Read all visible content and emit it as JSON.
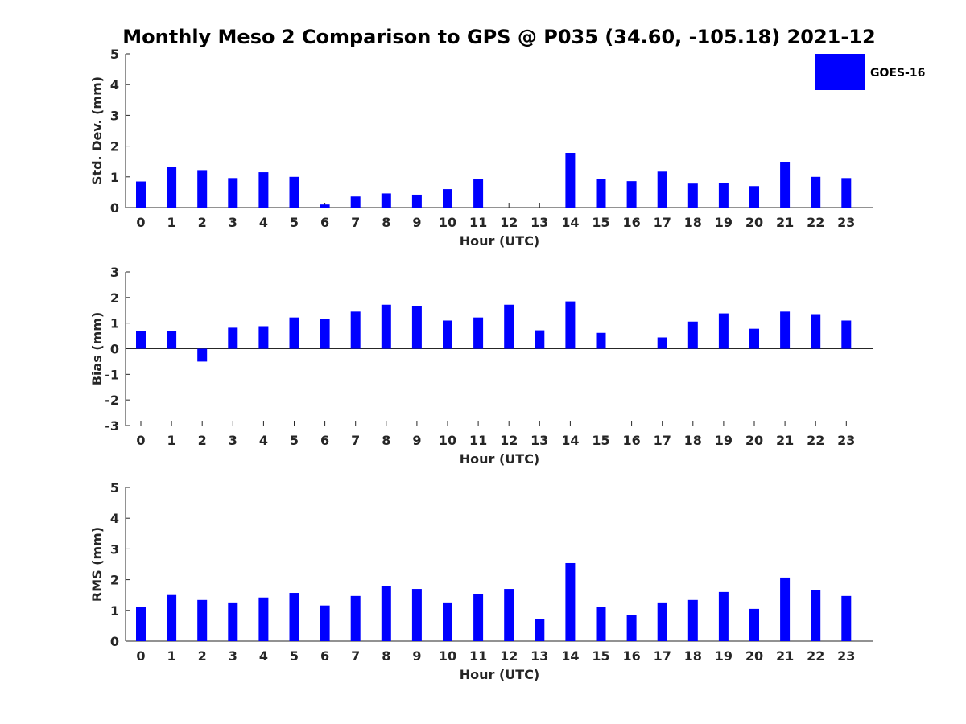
{
  "figure": {
    "title": "Monthly Meso 2 Comparison to GPS @ P035 (34.60, -105.18) 2021-12",
    "legend_label": "GOES-16",
    "bar_color": "#0000ff"
  },
  "chart_data": [
    {
      "type": "bar",
      "title": "Monthly Meso 2 Comparison to GPS @ P035 (34.60, -105.18) 2021-12",
      "xlabel": "Hour (UTC)",
      "ylabel": "Std. Dev. (mm)",
      "ylim": [
        0,
        5
      ],
      "yticks": [
        0,
        1,
        2,
        3,
        4,
        5
      ],
      "categories": [
        "0",
        "1",
        "2",
        "3",
        "4",
        "5",
        "6",
        "7",
        "8",
        "9",
        "10",
        "11",
        "12",
        "13",
        "14",
        "15",
        "16",
        "17",
        "18",
        "19",
        "20",
        "21",
        "22",
        "23"
      ],
      "series": [
        {
          "name": "GOES-16",
          "values": [
            0.85,
            1.33,
            1.22,
            0.96,
            1.15,
            1.0,
            0.1,
            0.36,
            0.46,
            0.42,
            0.6,
            0.92,
            0.0,
            0.0,
            1.78,
            0.94,
            0.86,
            1.17,
            0.78,
            0.8,
            0.7,
            1.48,
            1.0,
            0.96
          ]
        }
      ],
      "legend": "top-right"
    },
    {
      "type": "bar",
      "xlabel": "Hour (UTC)",
      "ylabel": "Bias (mm)",
      "ylim": [
        -3,
        3
      ],
      "yticks": [
        -3,
        -2,
        -1,
        0,
        1,
        2,
        3
      ],
      "categories": [
        "0",
        "1",
        "2",
        "3",
        "4",
        "5",
        "6",
        "7",
        "8",
        "9",
        "10",
        "11",
        "12",
        "13",
        "14",
        "15",
        "16",
        "17",
        "18",
        "19",
        "20",
        "21",
        "22",
        "23"
      ],
      "series": [
        {
          "name": "GOES-16",
          "values": [
            0.7,
            0.7,
            -0.5,
            0.82,
            0.88,
            1.22,
            1.15,
            1.45,
            1.72,
            1.65,
            1.1,
            1.22,
            1.72,
            0.72,
            1.85,
            0.62,
            0.0,
            0.44,
            1.06,
            1.38,
            0.78,
            1.45,
            1.35,
            1.1
          ]
        }
      ]
    },
    {
      "type": "bar",
      "xlabel": "Hour (UTC)",
      "ylabel": "RMS (mm)",
      "ylim": [
        0,
        5
      ],
      "yticks": [
        0,
        1,
        2,
        3,
        4,
        5
      ],
      "categories": [
        "0",
        "1",
        "2",
        "3",
        "4",
        "5",
        "6",
        "7",
        "8",
        "9",
        "10",
        "11",
        "12",
        "13",
        "14",
        "15",
        "16",
        "17",
        "18",
        "19",
        "20",
        "21",
        "22",
        "23"
      ],
      "series": [
        {
          "name": "GOES-16",
          "values": [
            1.1,
            1.5,
            1.34,
            1.26,
            1.42,
            1.57,
            1.16,
            1.47,
            1.78,
            1.7,
            1.26,
            1.52,
            1.7,
            0.71,
            2.54,
            1.1,
            0.84,
            1.26,
            1.34,
            1.6,
            1.05,
            2.07,
            1.65,
            1.47
          ]
        }
      ]
    }
  ]
}
